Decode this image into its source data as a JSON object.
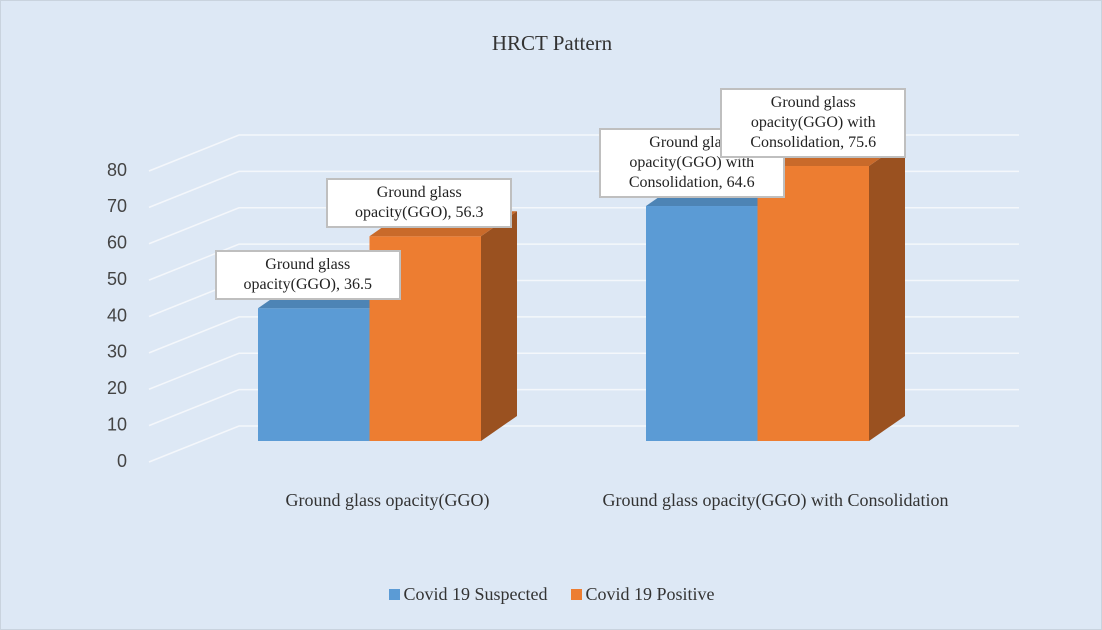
{
  "chart_data": {
    "type": "bar3d",
    "title": "HRCT Pattern",
    "categories": [
      "Ground glass opacity(GGO)",
      "Ground glass opacity(GGO) with Consolidation"
    ],
    "series": [
      {
        "name": "Covid 19 Suspected",
        "color": "#5b9bd5",
        "values": [
          36.5,
          64.6
        ],
        "value_labels": [
          "Ground glass opacity(GGO), 36.5",
          "Ground glass opacity(GGO) with Consolidation, 64.6"
        ]
      },
      {
        "name": "Covid 19 Positive",
        "color": "#ed7d31",
        "values": [
          56.3,
          75.6
        ],
        "value_labels": [
          "Ground glass opacity(GGO), 56.3",
          "Ground glass opacity(GGO) with Consolidation, 75.6"
        ]
      }
    ],
    "ylim": [
      0,
      80
    ],
    "yticks": [
      0,
      10,
      20,
      30,
      40,
      50,
      60,
      70,
      80
    ],
    "grid": true,
    "legend": "bottom"
  }
}
